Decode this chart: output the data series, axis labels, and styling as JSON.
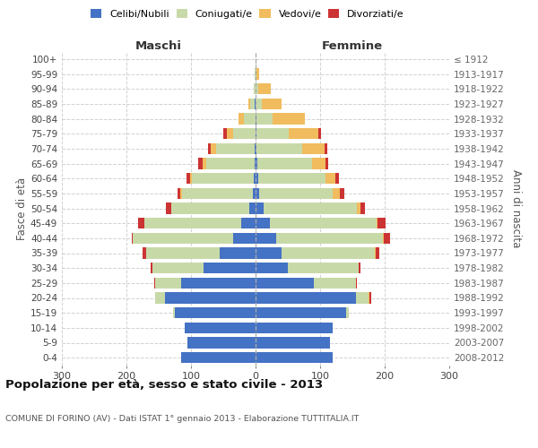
{
  "age_groups": [
    "0-4",
    "5-9",
    "10-14",
    "15-19",
    "20-24",
    "25-29",
    "30-34",
    "35-39",
    "40-44",
    "45-49",
    "50-54",
    "55-59",
    "60-64",
    "65-69",
    "70-74",
    "75-79",
    "80-84",
    "85-89",
    "90-94",
    "95-99",
    "100+"
  ],
  "birth_years": [
    "2008-2012",
    "2003-2007",
    "1998-2002",
    "1993-1997",
    "1988-1992",
    "1983-1987",
    "1978-1982",
    "1973-1977",
    "1968-1972",
    "1963-1967",
    "1958-1962",
    "1953-1957",
    "1948-1952",
    "1943-1947",
    "1938-1942",
    "1933-1937",
    "1928-1932",
    "1923-1927",
    "1918-1922",
    "1913-1917",
    "≤ 1912"
  ],
  "maschi": {
    "celibi": [
      115,
      105,
      110,
      125,
      140,
      115,
      80,
      55,
      35,
      22,
      10,
      4,
      3,
      2,
      1,
      0,
      0,
      1,
      0,
      0,
      0
    ],
    "coniugati": [
      0,
      0,
      0,
      3,
      15,
      40,
      80,
      115,
      155,
      150,
      120,
      110,
      95,
      75,
      60,
      35,
      18,
      8,
      3,
      1,
      0
    ],
    "vedovi": [
      0,
      0,
      0,
      0,
      0,
      0,
      0,
      0,
      0,
      0,
      1,
      2,
      3,
      5,
      8,
      10,
      8,
      2,
      0,
      0,
      0
    ],
    "divorziati": [
      0,
      0,
      0,
      0,
      1,
      2,
      2,
      5,
      2,
      10,
      8,
      5,
      6,
      7,
      4,
      5,
      0,
      0,
      0,
      0,
      0
    ]
  },
  "femmine": {
    "nubili": [
      120,
      115,
      120,
      140,
      155,
      90,
      50,
      40,
      32,
      22,
      12,
      5,
      4,
      3,
      2,
      2,
      1,
      0,
      0,
      0,
      0
    ],
    "coniugate": [
      0,
      0,
      0,
      5,
      20,
      65,
      110,
      145,
      165,
      165,
      145,
      115,
      105,
      85,
      70,
      50,
      25,
      10,
      4,
      1,
      0
    ],
    "vedove": [
      0,
      0,
      0,
      0,
      2,
      0,
      0,
      1,
      2,
      2,
      5,
      10,
      15,
      20,
      35,
      45,
      50,
      30,
      20,
      5,
      0
    ],
    "divorziate": [
      0,
      0,
      0,
      0,
      2,
      2,
      3,
      5,
      10,
      12,
      8,
      8,
      5,
      5,
      4,
      5,
      0,
      0,
      0,
      0,
      0
    ]
  },
  "colors": {
    "celibi": "#4472C4",
    "coniugati": "#C8D9A8",
    "vedovi": "#F0BC5E",
    "divorziati": "#CC3333"
  },
  "xlim": 300,
  "title": "Popolazione per età, sesso e stato civile - 2013",
  "subtitle": "COMUNE DI FORINO (AV) - Dati ISTAT 1° gennaio 2013 - Elaborazione TUTTITALIA.IT",
  "ylabel_left": "Fasce di età",
  "ylabel_right": "Anni di nascita",
  "xlabel_left": "Maschi",
  "xlabel_right": "Femmine",
  "bg_color": "#ffffff",
  "grid_color": "#cccccc"
}
